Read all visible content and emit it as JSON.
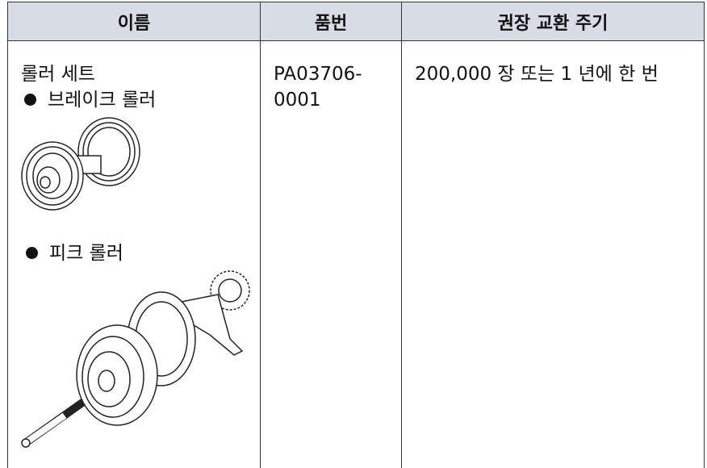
{
  "table": {
    "headers": [
      "이름",
      "품번",
      "권장 교환 주기"
    ],
    "rows": [
      {
        "name": "롤러 세트",
        "items": [
          "브레이크 롤러",
          "피크 롤러"
        ],
        "part_number": "PA03706-0001",
        "interval": "200,000 장 또는 1 년에 한 번"
      }
    ]
  }
}
